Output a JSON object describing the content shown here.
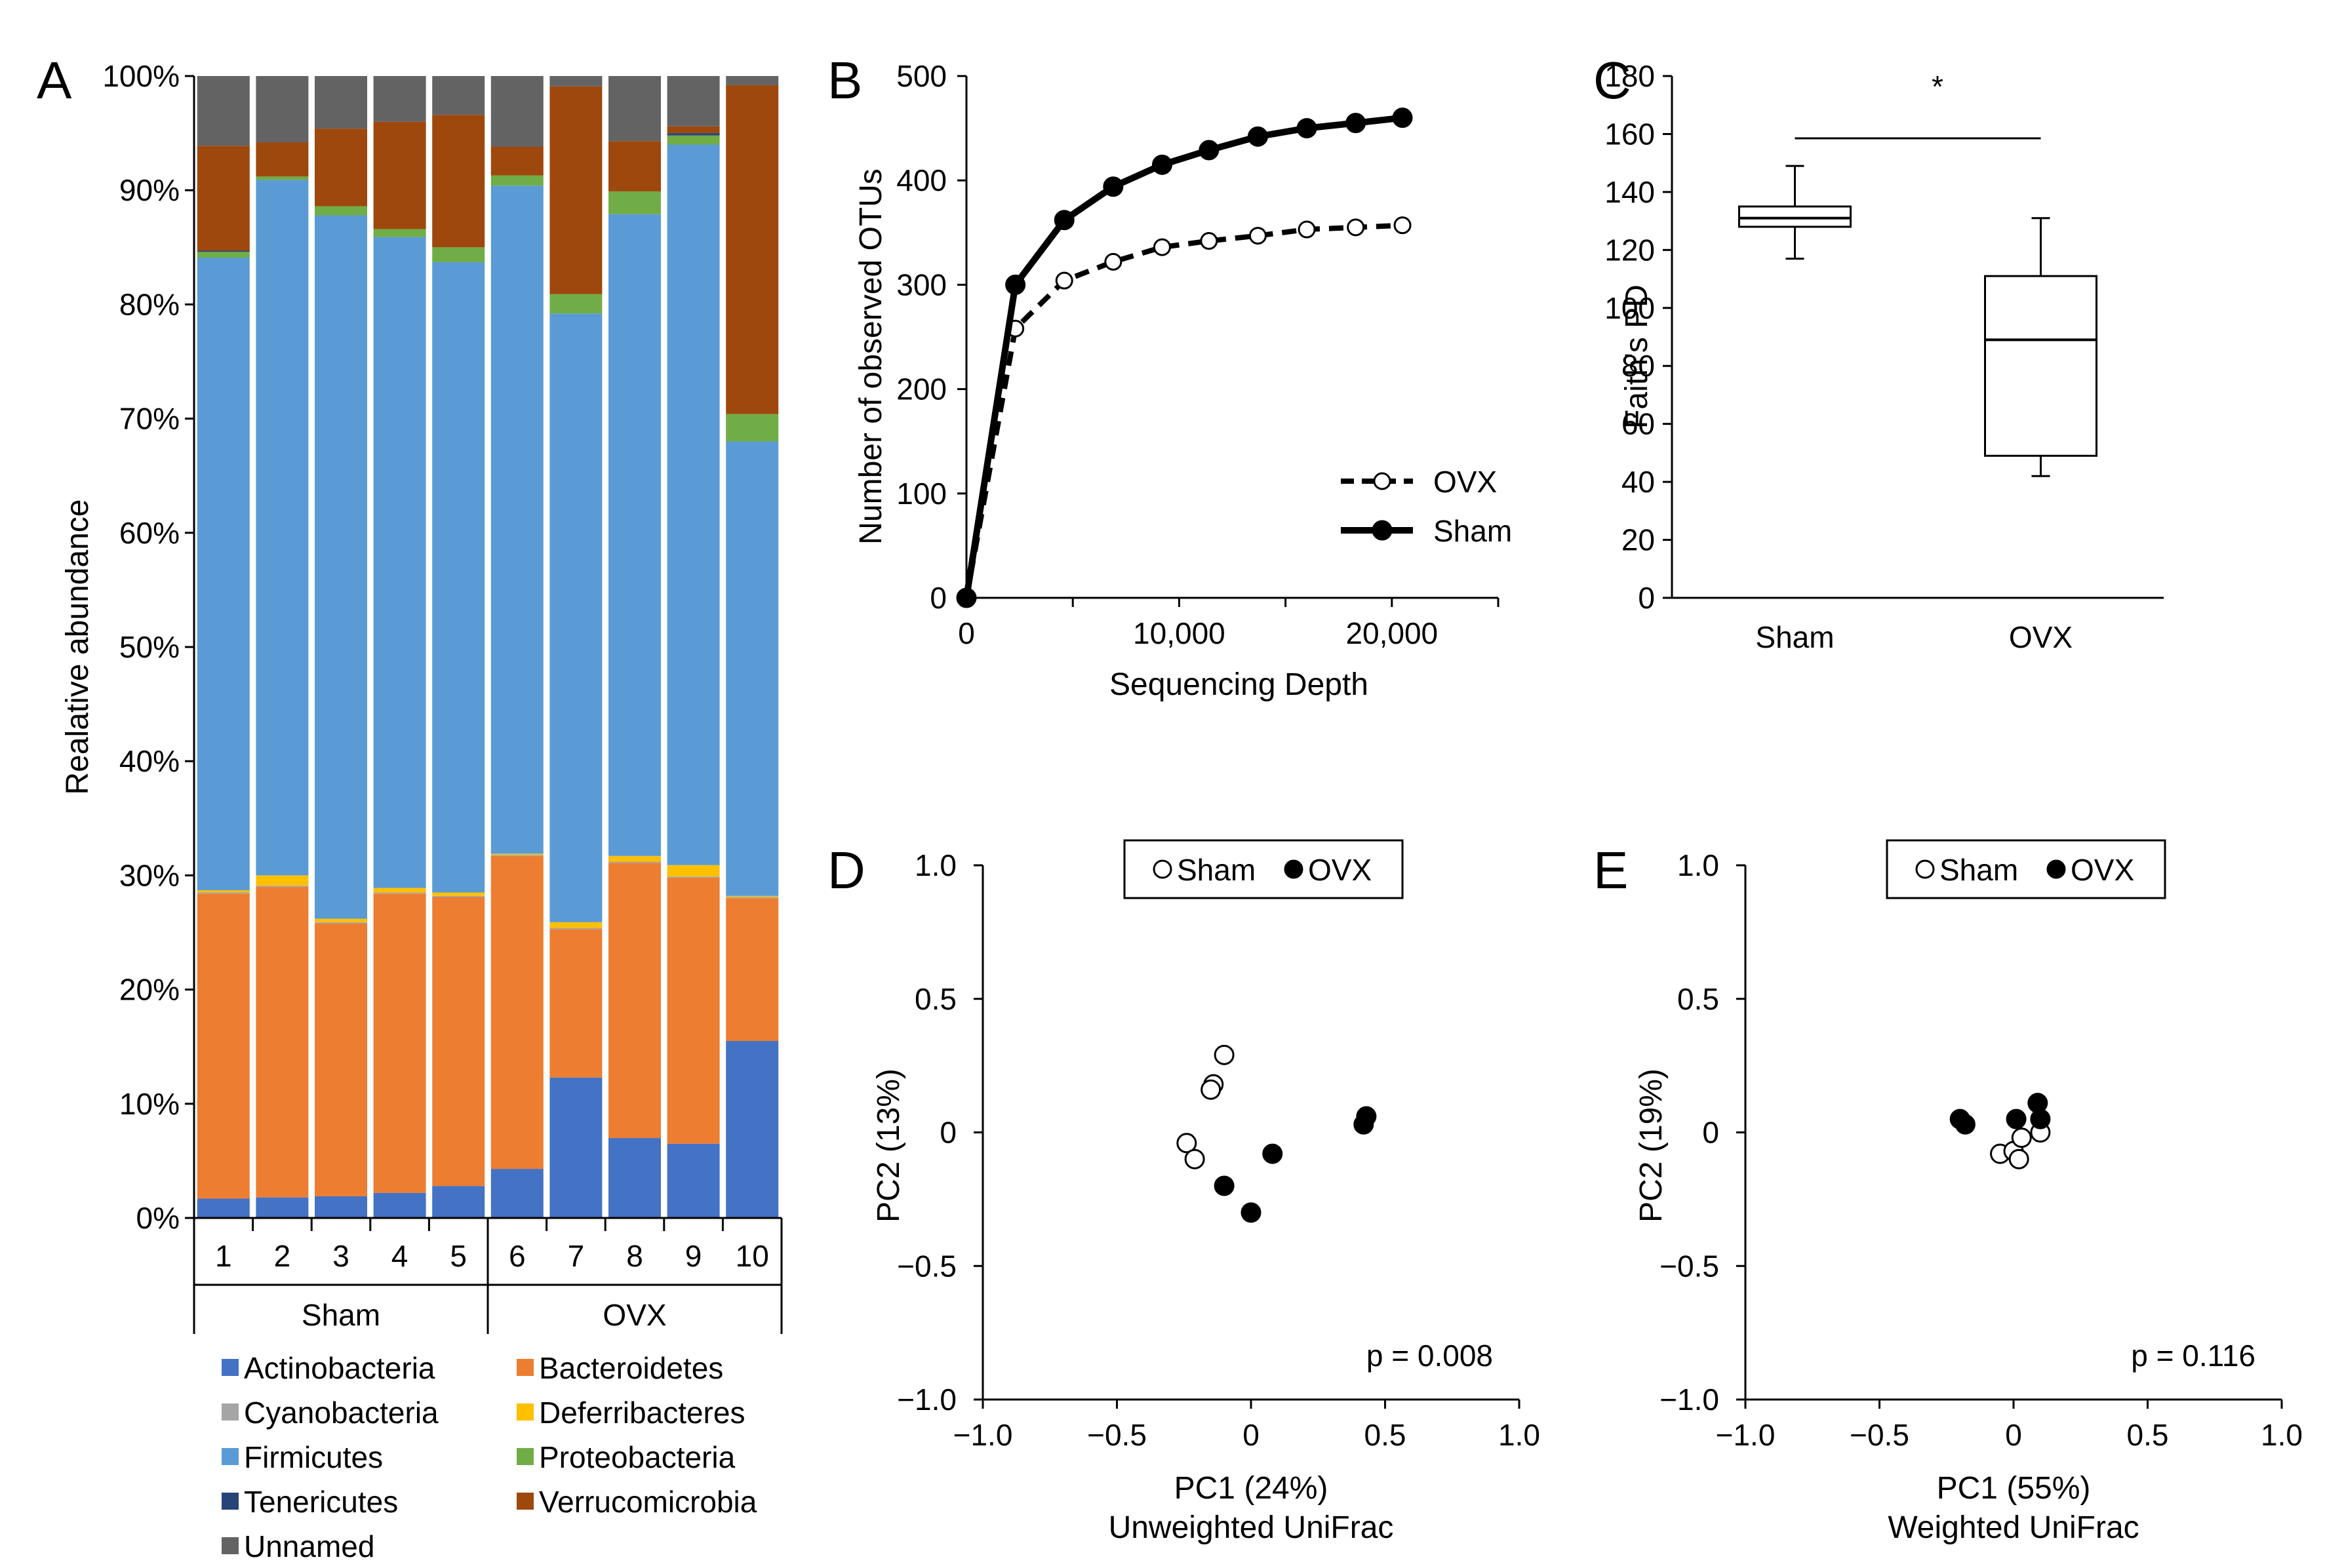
{
  "chart_data": [
    {
      "panel": "A",
      "type": "bar",
      "stacked": true,
      "ylabel": "Realative abundance",
      "ylim": [
        0,
        100
      ],
      "yticks": [
        "0%",
        "10%",
        "20%",
        "30%",
        "40%",
        "50%",
        "60%",
        "70%",
        "80%",
        "90%",
        "100%"
      ],
      "categories": [
        "1",
        "2",
        "3",
        "4",
        "5",
        "6",
        "7",
        "8",
        "9",
        "10"
      ],
      "groups": [
        {
          "label": "Sham",
          "members": [
            "1",
            "2",
            "3",
            "4",
            "5"
          ]
        },
        {
          "label": "OVX",
          "members": [
            "6",
            "7",
            "8",
            "9",
            "10"
          ]
        }
      ],
      "series": [
        {
          "name": "Actinobacteria",
          "color": "#4472C4",
          "values": [
            1.7,
            1.8,
            1.9,
            2.2,
            2.8,
            4.3,
            12.3,
            7.0,
            6.5,
            15.5
          ]
        },
        {
          "name": "Bacteroidetes",
          "color": "#ED7D31",
          "values": [
            26.7,
            27.2,
            23.9,
            26.2,
            25.3,
            27.4,
            13.0,
            24.1,
            23.3,
            12.5
          ]
        },
        {
          "name": "Cyanobacteria",
          "color": "#A5A5A5",
          "values": [
            0.1,
            0.1,
            0.1,
            0.1,
            0.1,
            0.1,
            0.1,
            0.1,
            0.1,
            0.1
          ]
        },
        {
          "name": "Deferribacteres",
          "color": "#FFC000",
          "values": [
            0.2,
            0.9,
            0.3,
            0.4,
            0.3,
            0.1,
            0.5,
            0.5,
            1.0,
            0.1
          ]
        },
        {
          "name": "Firmicutes",
          "color": "#5B9BD5",
          "values": [
            55.4,
            60.9,
            61.6,
            57.0,
            55.2,
            58.5,
            53.3,
            56.2,
            63.1,
            39.8
          ]
        },
        {
          "name": "Proteobacteria",
          "color": "#70AD47",
          "values": [
            0.5,
            0.3,
            0.8,
            0.7,
            1.3,
            0.9,
            1.7,
            2.0,
            0.8,
            2.4
          ]
        },
        {
          "name": "Tenericutes",
          "color": "#264478",
          "values": [
            0.1,
            0.0,
            0.0,
            0.0,
            0.0,
            0.0,
            0.0,
            0.0,
            0.2,
            0.0
          ]
        },
        {
          "name": "Verrucomicrobia",
          "color": "#9E480E",
          "values": [
            9.2,
            3.0,
            6.8,
            9.4,
            11.6,
            2.5,
            18.2,
            4.4,
            0.6,
            28.8
          ]
        },
        {
          "name": "Unnamed",
          "color": "#636363",
          "values": [
            6.1,
            5.8,
            4.6,
            4.0,
            3.4,
            6.2,
            0.9,
            5.7,
            4.4,
            0.8
          ]
        }
      ]
    },
    {
      "panel": "B",
      "type": "line",
      "xlabel": "Sequencing Depth",
      "ylabel": "Number of observed OTUs",
      "xlim": [
        0,
        25000
      ],
      "ylim": [
        0,
        500
      ],
      "xticks": [
        "0",
        "10,000",
        "20,000"
      ],
      "yticks": [
        "0",
        "100",
        "200",
        "300",
        "400",
        "500"
      ],
      "series": [
        {
          "name": "OVX",
          "x": [
            0,
            2300,
            4600,
            6900,
            9200,
            11400,
            13700,
            16000,
            18300,
            20500
          ],
          "y": [
            0,
            258,
            304,
            322,
            336,
            342,
            347,
            353,
            355,
            357
          ]
        },
        {
          "name": "Sham",
          "x": [
            0,
            2300,
            4600,
            6900,
            9200,
            11400,
            13700,
            16000,
            18300,
            20500
          ],
          "y": [
            0,
            300,
            362,
            394,
            415,
            429,
            442,
            450,
            455,
            460
          ]
        }
      ]
    },
    {
      "panel": "C",
      "type": "box",
      "ylabel": "Faith's PD",
      "ylim": [
        0,
        180
      ],
      "yticks": [
        "0",
        "20",
        "40",
        "60",
        "80",
        "100",
        "120",
        "140",
        "160",
        "180"
      ],
      "categories": [
        "Sham",
        "OVX"
      ],
      "boxes": [
        {
          "label": "Sham",
          "min": 117,
          "q1": 128,
          "median": 131,
          "q3": 135,
          "max": 149
        },
        {
          "label": "OVX",
          "min": 42,
          "q1": 49,
          "median": 89,
          "q3": 111,
          "max": 131
        }
      ],
      "significance": "*"
    },
    {
      "panel": "D",
      "type": "scatter",
      "xlabel": "PC1 (24%)",
      "subtitle": "Unweighted UniFrac",
      "ylabel": "PC2 (13%)",
      "xlim": [
        -1.0,
        1.0
      ],
      "ylim": [
        -1.0,
        1.0
      ],
      "xticks": [
        "−1.0",
        "−0.5",
        "0",
        "0.5",
        "1.0"
      ],
      "yticks": [
        "−1.0",
        "−0.5",
        "0",
        "0.5",
        "1.0"
      ],
      "annotation": "p = 0.008",
      "series": [
        {
          "name": "Sham",
          "x": [
            -0.1,
            -0.14,
            -0.15,
            -0.24,
            -0.21
          ],
          "y": [
            0.29,
            0.18,
            0.16,
            -0.04,
            -0.1
          ]
        },
        {
          "name": "OVX",
          "x": [
            0.43,
            0.42,
            0.08,
            -0.1,
            0.0
          ],
          "y": [
            0.06,
            0.03,
            -0.08,
            -0.2,
            -0.3
          ]
        }
      ]
    },
    {
      "panel": "E",
      "type": "scatter",
      "xlabel": "PC1 (55%)",
      "subtitle": "Weighted UniFrac",
      "ylabel": "PC2 (19%)",
      "xlim": [
        -1.0,
        1.0
      ],
      "ylim": [
        -1.0,
        1.0
      ],
      "xticks": [
        "−1.0",
        "−0.5",
        "0",
        "0.5",
        "1.0"
      ],
      "yticks": [
        "−1.0",
        "−0.5",
        "0",
        "0.5",
        "1.0"
      ],
      "annotation": "p = 0.116",
      "series": [
        {
          "name": "Sham",
          "x": [
            -0.05,
            0.0,
            0.03,
            0.1,
            0.02
          ],
          "y": [
            -0.08,
            -0.07,
            -0.02,
            0.0,
            -0.1
          ]
        },
        {
          "name": "OVX",
          "x": [
            -0.2,
            -0.18,
            0.01,
            0.09,
            0.1
          ],
          "y": [
            0.05,
            0.03,
            0.05,
            0.11,
            0.05
          ]
        }
      ]
    }
  ],
  "panel_letters": [
    "A",
    "B",
    "C",
    "D",
    "E"
  ]
}
